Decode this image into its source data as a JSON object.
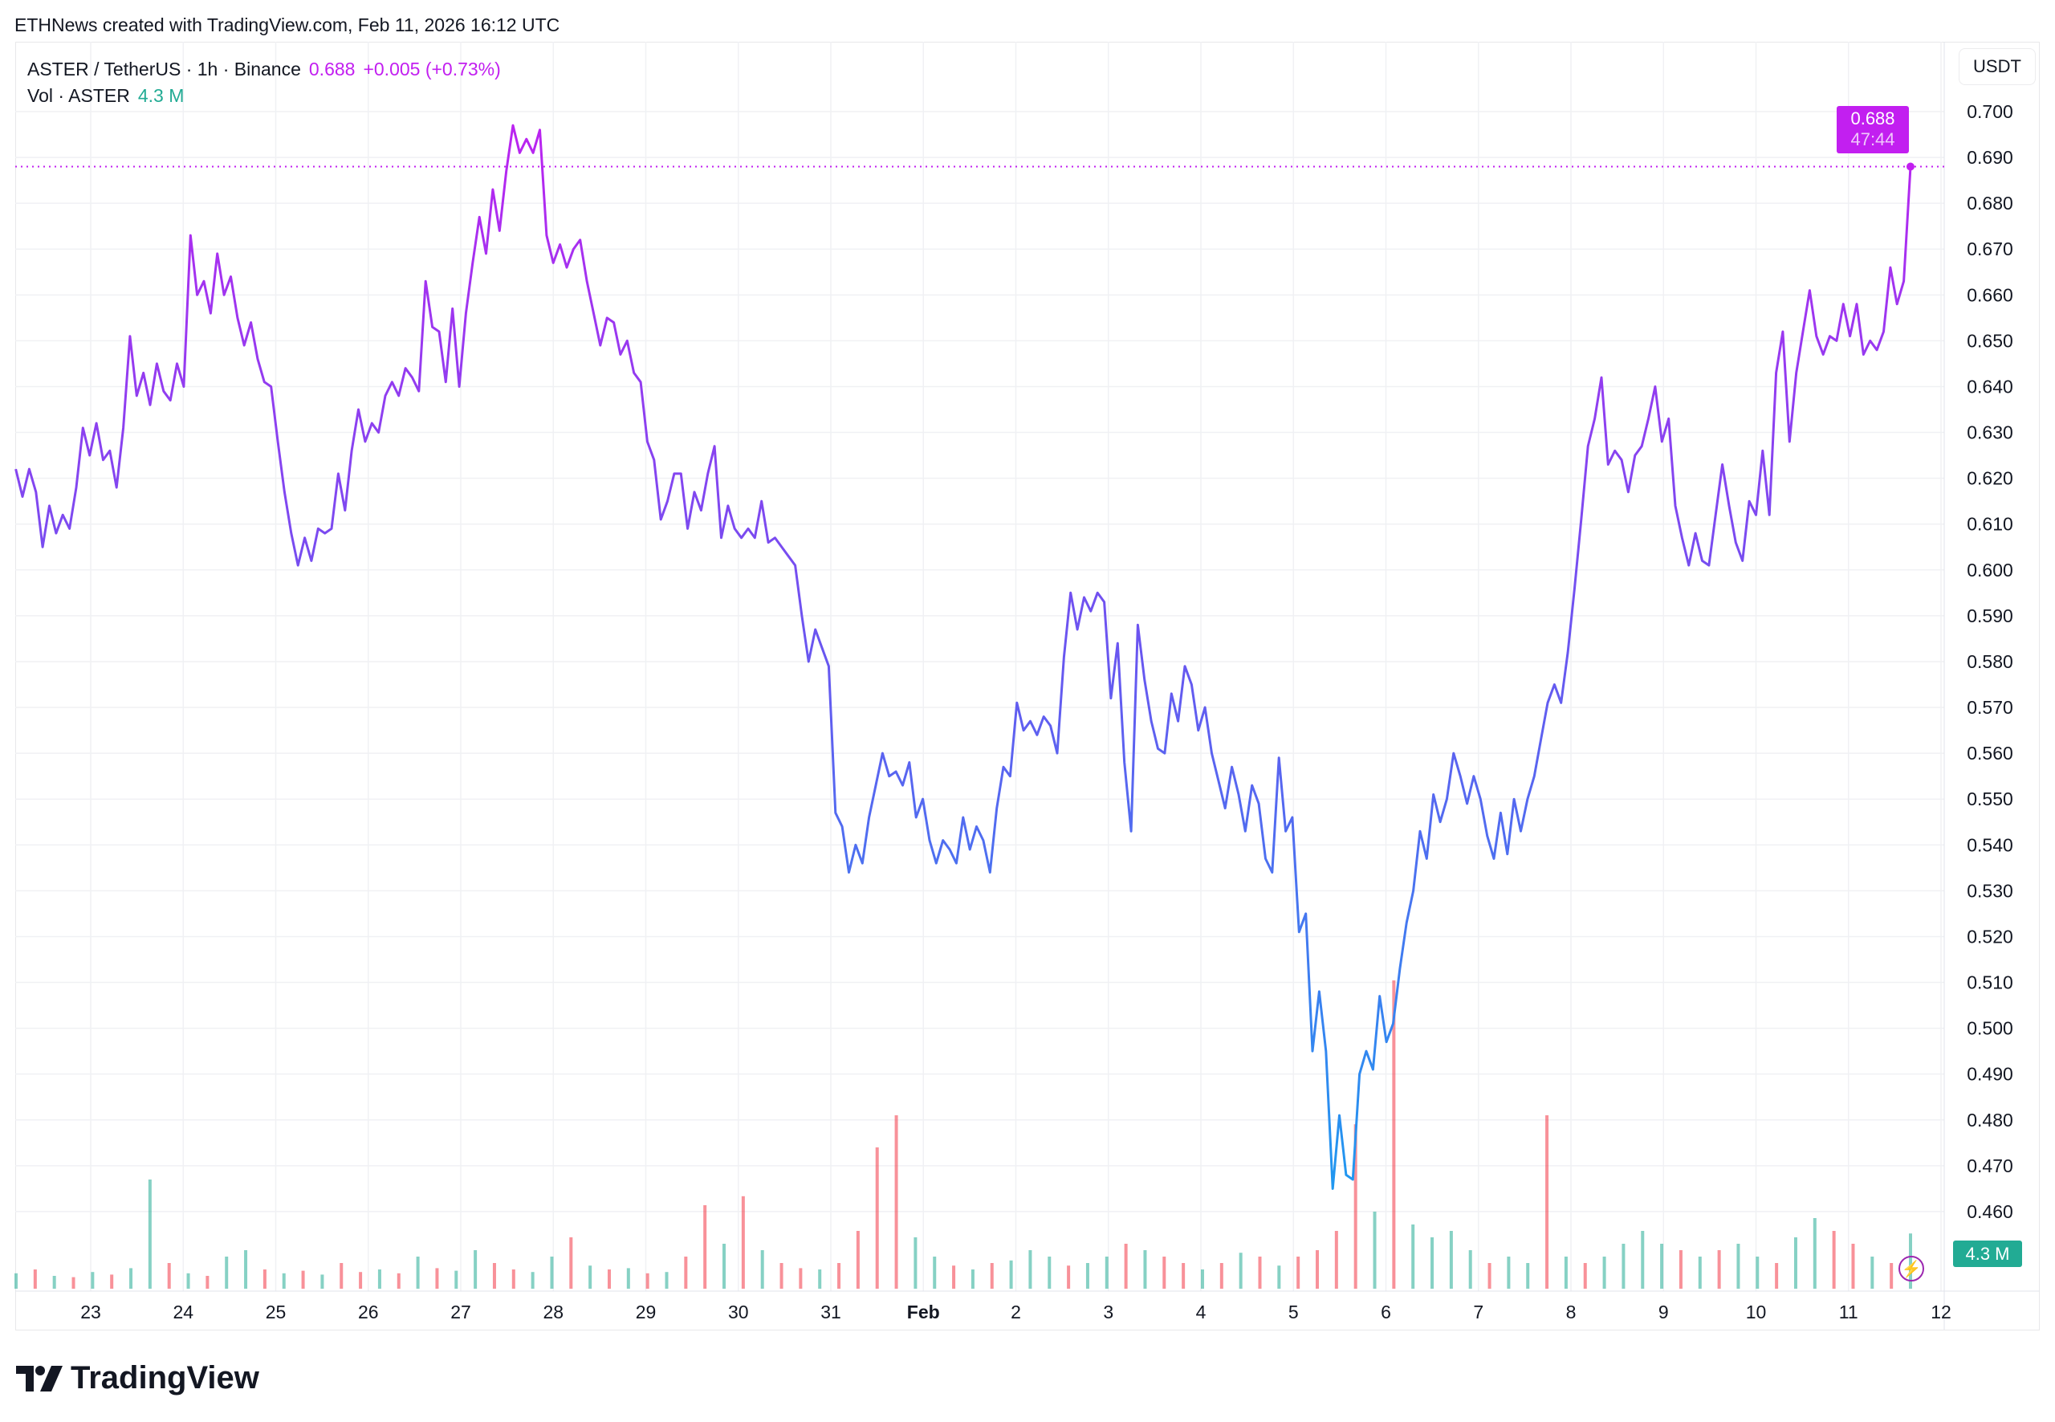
{
  "attribution": "ETHNews created with TradingView.com, Feb 11, 2026 16:12 UTC",
  "legend": {
    "symbol": "ASTER / TetherUS · 1h · Binance",
    "price": "0.688",
    "change": "+0.005 (+0.73%)",
    "vol_label": "Vol · ASTER",
    "vol_value": "4.3 M"
  },
  "currency_button": "USDT",
  "price_label": {
    "value": "0.688",
    "countdown": "47:44"
  },
  "vol_badge": "4.3 M",
  "logo_text": "TradingView",
  "colors": {
    "accent": "#c21ff0",
    "line_top": "#c21ff0",
    "line_mid": "#6a55f0",
    "line_bottom": "#1e9af0",
    "vol_up": "#22ab94",
    "vol_down": "#f23645"
  },
  "chart_data": {
    "type": "line",
    "title": "ASTER / TetherUS · 1h · Binance",
    "ylabel": "USDT",
    "ylim": [
      0.455,
      0.708
    ],
    "y_ticks": [
      "0.700",
      "0.690",
      "0.680",
      "0.670",
      "0.660",
      "0.650",
      "0.640",
      "0.630",
      "0.620",
      "0.610",
      "0.600",
      "0.590",
      "0.580",
      "0.570",
      "0.560",
      "0.550",
      "0.540",
      "0.530",
      "0.520",
      "0.510",
      "0.500",
      "0.490",
      "0.480",
      "0.470",
      "0.460"
    ],
    "x_ticks": [
      {
        "label": "23",
        "day": 23
      },
      {
        "label": "24",
        "day": 24
      },
      {
        "label": "25",
        "day": 25
      },
      {
        "label": "26",
        "day": 26
      },
      {
        "label": "27",
        "day": 27
      },
      {
        "label": "28",
        "day": 28
      },
      {
        "label": "29",
        "day": 29
      },
      {
        "label": "30",
        "day": 30
      },
      {
        "label": "31",
        "day": 31
      },
      {
        "label": "Feb",
        "day": 32,
        "bold": true
      },
      {
        "label": "2",
        "day": 33
      },
      {
        "label": "3",
        "day": 34
      },
      {
        "label": "4",
        "day": 35
      },
      {
        "label": "5",
        "day": 36
      },
      {
        "label": "6",
        "day": 37
      },
      {
        "label": "7",
        "day": 38
      },
      {
        "label": "8",
        "day": 39
      },
      {
        "label": "9",
        "day": 40
      },
      {
        "label": "10",
        "day": 41
      },
      {
        "label": "11",
        "day": 42
      },
      {
        "label": "12",
        "day": 43
      }
    ],
    "x_range_days": [
      22.19,
      42.67
    ],
    "price": [
      0.622,
      0.616,
      0.622,
      0.617,
      0.605,
      0.614,
      0.608,
      0.612,
      0.609,
      0.618,
      0.631,
      0.625,
      0.632,
      0.624,
      0.626,
      0.618,
      0.631,
      0.651,
      0.638,
      0.643,
      0.636,
      0.645,
      0.639,
      0.637,
      0.645,
      0.64,
      0.673,
      0.66,
      0.663,
      0.656,
      0.669,
      0.66,
      0.664,
      0.655,
      0.649,
      0.654,
      0.646,
      0.641,
      0.64,
      0.628,
      0.617,
      0.608,
      0.601,
      0.607,
      0.602,
      0.609,
      0.608,
      0.609,
      0.621,
      0.613,
      0.626,
      0.635,
      0.628,
      0.632,
      0.63,
      0.638,
      0.641,
      0.638,
      0.644,
      0.642,
      0.639,
      0.663,
      0.653,
      0.652,
      0.641,
      0.657,
      0.64,
      0.656,
      0.667,
      0.677,
      0.669,
      0.683,
      0.674,
      0.687,
      0.697,
      0.691,
      0.694,
      0.691,
      0.696,
      0.673,
      0.667,
      0.671,
      0.666,
      0.67,
      0.672,
      0.663,
      0.656,
      0.649,
      0.655,
      0.654,
      0.647,
      0.65,
      0.643,
      0.641,
      0.628,
      0.624,
      0.611,
      0.615,
      0.621,
      0.621,
      0.609,
      0.617,
      0.613,
      0.621,
      0.627,
      0.607,
      0.614,
      0.609,
      0.607,
      0.609,
      0.607,
      0.615,
      0.606,
      0.607,
      0.605,
      0.603,
      0.601,
      0.59,
      0.58,
      0.587,
      0.583,
      0.579,
      0.547,
      0.544,
      0.534,
      0.54,
      0.536,
      0.546,
      0.553,
      0.56,
      0.555,
      0.556,
      0.553,
      0.558,
      0.546,
      0.55,
      0.541,
      0.536,
      0.541,
      0.539,
      0.536,
      0.546,
      0.539,
      0.544,
      0.541,
      0.534,
      0.548,
      0.557,
      0.555,
      0.571,
      0.565,
      0.567,
      0.564,
      0.568,
      0.566,
      0.56,
      0.581,
      0.595,
      0.587,
      0.594,
      0.591,
      0.595,
      0.593,
      0.572,
      0.584,
      0.558,
      0.543,
      0.588,
      0.576,
      0.567,
      0.561,
      0.56,
      0.573,
      0.567,
      0.579,
      0.575,
      0.565,
      0.57,
      0.56,
      0.554,
      0.548,
      0.557,
      0.551,
      0.543,
      0.553,
      0.549,
      0.537,
      0.534,
      0.559,
      0.543,
      0.546,
      0.521,
      0.525,
      0.495,
      0.508,
      0.495,
      0.465,
      0.481,
      0.468,
      0.467,
      0.49,
      0.495,
      0.491,
      0.507,
      0.497,
      0.501,
      0.513,
      0.523,
      0.53,
      0.543,
      0.537,
      0.551,
      0.545,
      0.55,
      0.56,
      0.555,
      0.549,
      0.555,
      0.55,
      0.542,
      0.537,
      0.547,
      0.538,
      0.55,
      0.543,
      0.55,
      0.555,
      0.563,
      0.571,
      0.575,
      0.571,
      0.582,
      0.596,
      0.611,
      0.627,
      0.633,
      0.642,
      0.623,
      0.626,
      0.624,
      0.617,
      0.625,
      0.627,
      0.633,
      0.64,
      0.628,
      0.633,
      0.614,
      0.607,
      0.601,
      0.608,
      0.602,
      0.601,
      0.612,
      0.623,
      0.614,
      0.606,
      0.602,
      0.615,
      0.612,
      0.626,
      0.612,
      0.643,
      0.652,
      0.628,
      0.643,
      0.652,
      0.661,
      0.651,
      0.647,
      0.651,
      0.65,
      0.658,
      0.651,
      0.658,
      0.647,
      0.65,
      0.648,
      0.652,
      0.666,
      0.658,
      0.663,
      0.688
    ],
    "volume_unit": "M",
    "volume": [
      1.2,
      1.5,
      1.0,
      0.9,
      1.3,
      1.1,
      1.6,
      8.5,
      2.0,
      1.2,
      1.0,
      2.5,
      3.0,
      1.5,
      1.2,
      1.4,
      1.1,
      2.0,
      1.3,
      1.5,
      1.2,
      2.5,
      1.6,
      1.4,
      3.0,
      2.0,
      1.5,
      1.3,
      2.5,
      4.0,
      1.8,
      1.5,
      1.6,
      1.2,
      1.3,
      2.5,
      6.5,
      3.5,
      7.2,
      3.0,
      2.0,
      1.6,
      1.5,
      2.0,
      4.5,
      11.0,
      13.5,
      4.0,
      2.5,
      1.8,
      1.5,
      2.0,
      2.2,
      3.0,
      2.5,
      1.8,
      2.0,
      2.5,
      3.5,
      3.0,
      2.5,
      2.0,
      1.5,
      2.0,
      2.8,
      2.5,
      1.8,
      2.5,
      3.0,
      4.5,
      12.8,
      6.0,
      24.0,
      5.0,
      4.0,
      4.5,
      3.0,
      2.0,
      2.5,
      2.0,
      13.5,
      2.5,
      2.0,
      2.5,
      3.5,
      4.5,
      3.5,
      3.0,
      2.5,
      3.0,
      3.5,
      2.5,
      2.0,
      4.0,
      5.5,
      4.5,
      3.5,
      2.5,
      2.0,
      4.3
    ],
    "volume_up": [
      1,
      0,
      1,
      0,
      1,
      0,
      1,
      1,
      0,
      1,
      0,
      1,
      1,
      0,
      1,
      0,
      1,
      0,
      0,
      1,
      0,
      1,
      0,
      1,
      1,
      0,
      0,
      1,
      1,
      0,
      1,
      0,
      1,
      0,
      1,
      0,
      0,
      1,
      0,
      1,
      0,
      0,
      1,
      0,
      0,
      0,
      0,
      1,
      1,
      0,
      1,
      0,
      1,
      1,
      1,
      0,
      1,
      1,
      0,
      1,
      0,
      0,
      1,
      0,
      1,
      0,
      1,
      0,
      0,
      0,
      0,
      1,
      0,
      1,
      1,
      1,
      1,
      0,
      1,
      1,
      0,
      1,
      0,
      1,
      1,
      1,
      1,
      0,
      1,
      0,
      1,
      1,
      0,
      1,
      1,
      0,
      0,
      1,
      0,
      1
    ]
  }
}
